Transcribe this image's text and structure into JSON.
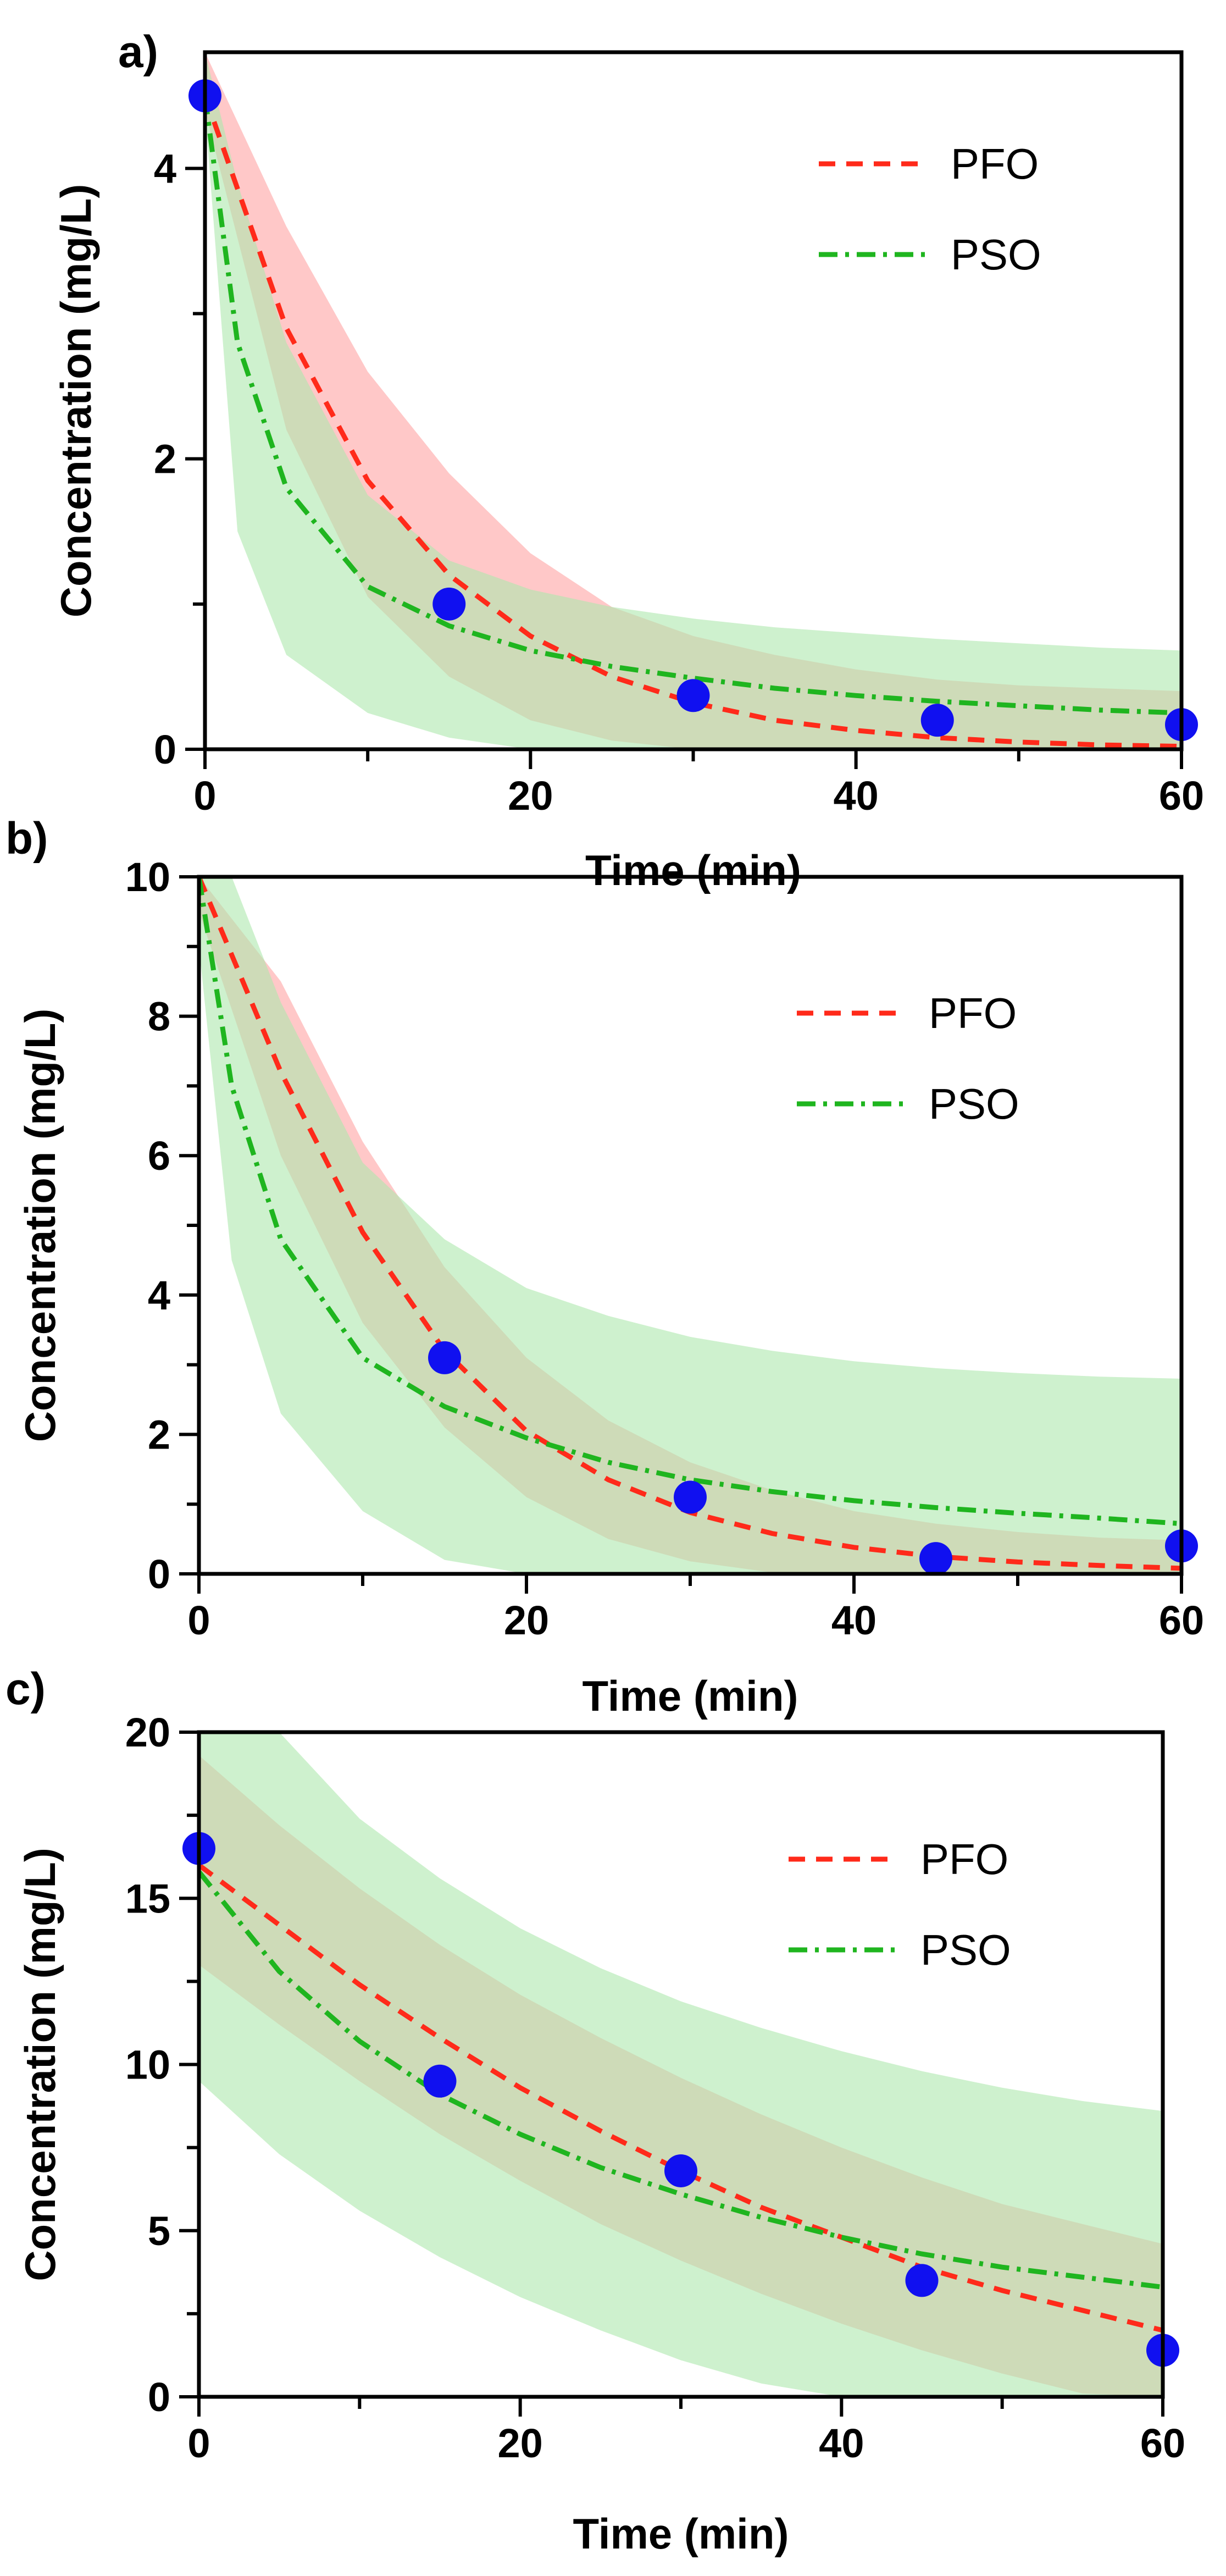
{
  "colors": {
    "pfo": "#ff2a1a",
    "pso": "#1fb51f",
    "pfo_band": "#ff9a9a",
    "pso_band": "#aee8ae",
    "points": "#1010f0",
    "axis": "#000000"
  },
  "chart_data": [
    {
      "type": "line",
      "panel_label": "a)",
      "xlabel": "Time (min)",
      "ylabel": "Concentration (mg/L)",
      "xlim": [
        0,
        60
      ],
      "ylim": [
        0,
        4.8
      ],
      "x_ticks": [
        "0",
        "20",
        "40",
        "60"
      ],
      "y_ticks": [
        "0",
        "2",
        "4"
      ],
      "y_tick_values": [
        0,
        2,
        4
      ],
      "legend": [
        "PFO",
        "PSO"
      ],
      "legend_position": "top-right",
      "observed": {
        "x": [
          0,
          15,
          30,
          45,
          60
        ],
        "y": [
          4.5,
          1.0,
          0.37,
          0.2,
          0.17
        ]
      },
      "series": [
        {
          "name": "PFO",
          "style": "dashed",
          "x": [
            0,
            5,
            10,
            15,
            20,
            25,
            30,
            35,
            40,
            45,
            50,
            55,
            60
          ],
          "y": [
            4.5,
            2.9,
            1.85,
            1.2,
            0.78,
            0.5,
            0.32,
            0.2,
            0.13,
            0.08,
            0.05,
            0.03,
            0.02
          ],
          "band_lower": [
            4.4,
            2.2,
            1.05,
            0.5,
            0.2,
            0.06,
            0.0,
            0.0,
            0.0,
            0.0,
            0.0,
            0.0,
            0.0
          ],
          "band_upper": [
            4.8,
            3.6,
            2.6,
            1.9,
            1.35,
            0.98,
            0.78,
            0.65,
            0.55,
            0.48,
            0.44,
            0.42,
            0.4
          ]
        },
        {
          "name": "PSO",
          "style": "dashdot",
          "x": [
            0,
            2,
            5,
            10,
            15,
            20,
            25,
            30,
            35,
            40,
            45,
            50,
            55,
            60
          ],
          "y": [
            4.5,
            2.8,
            1.8,
            1.12,
            0.85,
            0.68,
            0.57,
            0.49,
            0.42,
            0.37,
            0.33,
            0.3,
            0.27,
            0.25
          ],
          "band_lower": [
            4.4,
            1.5,
            0.65,
            0.25,
            0.08,
            0.0,
            0.0,
            0.0,
            0.0,
            0.0,
            0.0,
            0.0,
            0.0,
            0.0
          ],
          "band_upper": [
            4.8,
            3.9,
            2.8,
            1.75,
            1.3,
            1.1,
            0.98,
            0.9,
            0.84,
            0.8,
            0.76,
            0.73,
            0.7,
            0.68
          ]
        }
      ]
    },
    {
      "type": "line",
      "panel_label": "b)",
      "xlabel": "Time (min)",
      "ylabel": "Concentration (mg/L)",
      "xlim": [
        0,
        60
      ],
      "ylim": [
        0,
        10
      ],
      "x_ticks": [
        "0",
        "20",
        "40",
        "60"
      ],
      "y_ticks": [
        "0",
        "2",
        "4",
        "6",
        "8",
        "10"
      ],
      "y_tick_values": [
        0,
        2,
        4,
        6,
        8,
        10
      ],
      "legend": [
        "PFO",
        "PSO"
      ],
      "legend_position": "top-right",
      "observed": {
        "x": [
          15,
          30,
          45,
          60
        ],
        "y": [
          3.1,
          1.1,
          0.22,
          0.4
        ]
      },
      "series": [
        {
          "name": "PFO",
          "style": "dashed",
          "x": [
            0,
            5,
            10,
            15,
            20,
            25,
            30,
            35,
            40,
            45,
            50,
            55,
            60
          ],
          "y": [
            10.0,
            7.2,
            4.9,
            3.2,
            2.05,
            1.35,
            0.88,
            0.58,
            0.38,
            0.25,
            0.17,
            0.12,
            0.08
          ],
          "band_lower": [
            9.5,
            6.0,
            3.6,
            2.1,
            1.1,
            0.5,
            0.18,
            0.02,
            0.0,
            0.0,
            0.0,
            0.0,
            0.0
          ],
          "band_upper": [
            10.0,
            8.5,
            6.2,
            4.4,
            3.1,
            2.2,
            1.6,
            1.2,
            0.9,
            0.72,
            0.6,
            0.52,
            0.48
          ]
        },
        {
          "name": "PSO",
          "style": "dashdot",
          "x": [
            0,
            2,
            5,
            10,
            15,
            20,
            25,
            30,
            35,
            40,
            45,
            50,
            55,
            60
          ],
          "y": [
            10.0,
            7.0,
            4.8,
            3.1,
            2.4,
            1.95,
            1.6,
            1.35,
            1.18,
            1.05,
            0.95,
            0.87,
            0.8,
            0.72
          ],
          "band_lower": [
            9.0,
            4.5,
            2.3,
            0.9,
            0.2,
            0.0,
            0.0,
            0.0,
            0.0,
            0.0,
            0.0,
            0.0,
            0.0,
            0.0
          ],
          "band_upper": [
            10.0,
            10.0,
            8.2,
            5.9,
            4.8,
            4.1,
            3.7,
            3.4,
            3.2,
            3.05,
            2.95,
            2.88,
            2.83,
            2.8
          ]
        }
      ]
    },
    {
      "type": "line",
      "panel_label": "c)",
      "xlabel": "Time (min)",
      "ylabel": "Concentration (mg/L)",
      "xlim": [
        0,
        60
      ],
      "ylim": [
        0,
        20
      ],
      "x_ticks": [
        "0",
        "20",
        "40",
        "60"
      ],
      "y_ticks": [
        "0",
        "5",
        "10",
        "15",
        "20"
      ],
      "y_tick_values": [
        0,
        5,
        10,
        15,
        20
      ],
      "legend": [
        "PFO",
        "PSO"
      ],
      "legend_position": "top-right",
      "observed": {
        "x": [
          0,
          15,
          30,
          45,
          60
        ],
        "y": [
          16.5,
          9.5,
          6.8,
          3.5,
          1.4
        ]
      },
      "series": [
        {
          "name": "PFO",
          "style": "dashed",
          "x": [
            0,
            5,
            10,
            15,
            20,
            25,
            30,
            35,
            40,
            45,
            50,
            55,
            60
          ],
          "y": [
            16.0,
            14.2,
            12.4,
            10.8,
            9.3,
            8.0,
            6.8,
            5.7,
            4.8,
            3.9,
            3.2,
            2.6,
            2.0
          ],
          "band_lower": [
            13.0,
            11.2,
            9.5,
            7.9,
            6.5,
            5.2,
            4.1,
            3.1,
            2.2,
            1.4,
            0.7,
            0.1,
            0.0
          ],
          "band_upper": [
            19.3,
            17.2,
            15.3,
            13.6,
            12.1,
            10.8,
            9.6,
            8.5,
            7.5,
            6.6,
            5.8,
            5.2,
            4.6
          ]
        },
        {
          "name": "PSO",
          "style": "dashdot",
          "x": [
            0,
            5,
            10,
            15,
            20,
            25,
            30,
            35,
            40,
            45,
            50,
            55,
            60
          ],
          "y": [
            15.8,
            12.8,
            10.7,
            9.1,
            7.9,
            6.9,
            6.1,
            5.4,
            4.8,
            4.3,
            3.9,
            3.6,
            3.3
          ],
          "band_lower": [
            9.5,
            7.3,
            5.6,
            4.2,
            3.0,
            2.0,
            1.1,
            0.4,
            0.0,
            0.0,
            0.0,
            0.0,
            0.0
          ],
          "band_upper": [
            20.0,
            20.0,
            17.4,
            15.6,
            14.1,
            12.9,
            11.9,
            11.1,
            10.4,
            9.8,
            9.3,
            8.9,
            8.6
          ]
        }
      ]
    }
  ]
}
